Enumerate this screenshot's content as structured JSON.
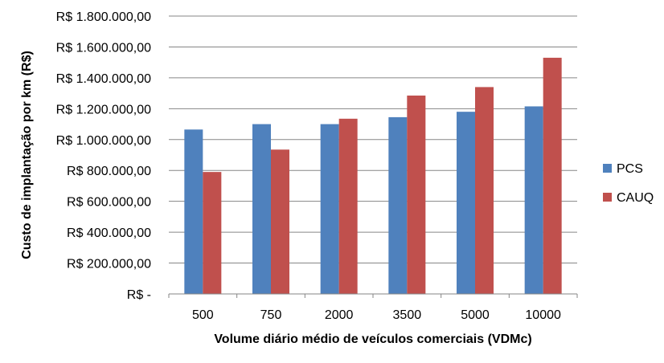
{
  "chart_data": {
    "type": "bar",
    "xlabel": "Volume diário médio de veículos comerciais (VDMc)",
    "ylabel": "Custo de implantação por km (R$)",
    "categories": [
      "500",
      "750",
      "2000",
      "3500",
      "5000",
      "10000"
    ],
    "series": [
      {
        "name": "PCS",
        "color": "#4F81BD",
        "values": [
          1065000,
          1100000,
          1100000,
          1145000,
          1180000,
          1215000
        ]
      },
      {
        "name": "CAUQ",
        "color": "#C0504D",
        "values": [
          790000,
          935000,
          1135000,
          1285000,
          1340000,
          1530000
        ]
      }
    ],
    "ylim": [
      0,
      1800000
    ],
    "yticks": [
      {
        "value": 0,
        "label": "R$ -"
      },
      {
        "value": 200000,
        "label": "R$ 200.000,00"
      },
      {
        "value": 400000,
        "label": "R$ 400.000,00"
      },
      {
        "value": 600000,
        "label": "R$ 600.000,00"
      },
      {
        "value": 800000,
        "label": "R$ 800.000,00"
      },
      {
        "value": 1000000,
        "label": "R$ 1.000.000,00"
      },
      {
        "value": 1200000,
        "label": "R$ 1.200.000,00"
      },
      {
        "value": 1400000,
        "label": "R$ 1.400.000,00"
      },
      {
        "value": 1600000,
        "label": "R$ 1.600.000,00"
      },
      {
        "value": 1800000,
        "label": "R$ 1.800.000,00"
      }
    ],
    "grid": true,
    "legend_position": "right",
    "gridline_color": "#868686"
  }
}
